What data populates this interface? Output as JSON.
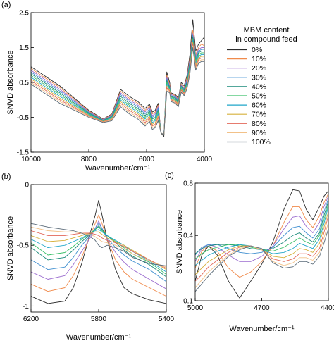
{
  "chart_data": [
    {
      "panel": "(a)",
      "type": "line",
      "xlabel": "Wavenumber/cm⁻¹",
      "ylabel": "SNVD absorbance",
      "xlim": [
        10000,
        4000
      ],
      "ylim": [
        -1.5,
        2.5
      ],
      "xticks": [
        "10000",
        "8000",
        "6000",
        "4000"
      ],
      "yticks": [
        "2.5",
        "1.5",
        "0.5",
        "-0.5",
        "-1.5"
      ],
      "legend_title": "MBM content\nin compound feed",
      "legend_position": "right",
      "x": [
        10000,
        9000,
        8000,
        7500,
        7200,
        6900,
        6600,
        6300,
        6050,
        5900,
        5800,
        5700,
        5600,
        5500,
        5400,
        5300,
        5200,
        5150,
        5000,
        4900,
        4800,
        4700,
        4600,
        4500,
        4400,
        4300,
        4200,
        4100,
        4000
      ],
      "series": [
        {
          "name": "0%",
          "values": [
            0.95,
            0.4,
            -0.3,
            -0.55,
            -0.4,
            0.3,
            0.1,
            -0.05,
            -0.25,
            -0.12,
            -0.35,
            -0.3,
            -0.1,
            -0.95,
            -1.05,
            0.8,
            0.5,
            0.2,
            0.15,
            0.05,
            0.5,
            0.4,
            0.7,
            1.3,
            2.3,
            1.4,
            1.6,
            1.7,
            1.8
          ]
        },
        {
          "name": "10%",
          "values": [
            0.9,
            0.35,
            -0.32,
            -0.56,
            -0.42,
            0.25,
            0.05,
            -0.1,
            -0.3,
            -0.18,
            -0.4,
            -0.35,
            -0.15,
            -0.95,
            -1.0,
            0.7,
            0.45,
            0.18,
            0.12,
            0.02,
            0.45,
            0.35,
            0.65,
            1.2,
            2.0,
            1.3,
            1.5,
            1.6,
            1.55
          ]
        },
        {
          "name": "20%",
          "values": [
            0.85,
            0.3,
            -0.34,
            -0.57,
            -0.44,
            0.2,
            0.0,
            -0.15,
            -0.35,
            -0.22,
            -0.45,
            -0.4,
            -0.2,
            -0.95,
            -1.0,
            0.65,
            0.4,
            0.15,
            0.1,
            0.0,
            0.42,
            0.32,
            0.6,
            1.15,
            1.9,
            1.25,
            1.45,
            1.5,
            1.5
          ]
        },
        {
          "name": "30%",
          "values": [
            0.8,
            0.25,
            -0.36,
            -0.58,
            -0.46,
            0.15,
            -0.05,
            -0.2,
            -0.4,
            -0.27,
            -0.5,
            -0.45,
            -0.25,
            -0.95,
            -1.0,
            0.6,
            0.38,
            0.12,
            0.08,
            -0.02,
            0.4,
            0.3,
            0.55,
            1.1,
            1.85,
            1.2,
            1.4,
            1.45,
            1.45
          ]
        },
        {
          "name": "40%",
          "values": [
            0.75,
            0.2,
            -0.38,
            -0.59,
            -0.48,
            0.1,
            -0.1,
            -0.25,
            -0.45,
            -0.32,
            -0.55,
            -0.5,
            -0.3,
            -0.95,
            -1.0,
            0.55,
            0.35,
            0.1,
            0.05,
            -0.05,
            0.38,
            0.28,
            0.5,
            1.05,
            1.8,
            1.15,
            1.35,
            1.4,
            1.4
          ]
        },
        {
          "name": "50%",
          "values": [
            0.7,
            0.15,
            -0.4,
            -0.6,
            -0.5,
            0.05,
            -0.15,
            -0.3,
            -0.5,
            -0.37,
            -0.6,
            -0.55,
            -0.35,
            -0.95,
            -1.0,
            0.5,
            0.32,
            0.08,
            0.02,
            -0.08,
            0.35,
            0.25,
            0.45,
            1.0,
            1.75,
            1.1,
            1.3,
            1.35,
            1.35
          ]
        },
        {
          "name": "60%",
          "values": [
            0.65,
            0.1,
            -0.42,
            -0.61,
            -0.52,
            0.0,
            -0.2,
            -0.35,
            -0.55,
            -0.42,
            -0.65,
            -0.6,
            -0.4,
            -0.95,
            -1.0,
            0.45,
            0.3,
            0.05,
            0.0,
            -0.1,
            0.32,
            0.22,
            0.42,
            0.95,
            1.7,
            1.05,
            1.25,
            1.3,
            1.3
          ]
        },
        {
          "name": "70%",
          "values": [
            0.6,
            0.05,
            -0.44,
            -0.62,
            -0.54,
            -0.05,
            -0.25,
            -0.4,
            -0.6,
            -0.47,
            -0.7,
            -0.65,
            -0.45,
            -0.95,
            -1.0,
            0.4,
            0.28,
            0.02,
            -0.02,
            -0.12,
            0.3,
            0.2,
            0.4,
            0.9,
            1.65,
            1.0,
            1.2,
            1.25,
            1.25
          ]
        },
        {
          "name": "80%",
          "values": [
            0.55,
            0.0,
            -0.46,
            -0.63,
            -0.56,
            -0.1,
            -0.3,
            -0.45,
            -0.65,
            -0.52,
            -0.75,
            -0.7,
            -0.5,
            -0.95,
            -1.0,
            0.35,
            0.25,
            0.0,
            -0.05,
            -0.15,
            0.28,
            0.18,
            0.38,
            0.85,
            1.6,
            0.95,
            1.15,
            1.2,
            1.2
          ]
        },
        {
          "name": "90%",
          "values": [
            0.5,
            -0.05,
            -0.48,
            -0.64,
            -0.58,
            -0.15,
            -0.35,
            -0.5,
            -0.7,
            -0.57,
            -0.8,
            -0.75,
            -0.55,
            -0.95,
            -1.0,
            0.3,
            0.22,
            -0.02,
            -0.08,
            -0.18,
            0.25,
            0.15,
            0.35,
            0.8,
            1.55,
            0.9,
            1.1,
            1.15,
            1.15
          ]
        },
        {
          "name": "100%",
          "values": [
            0.45,
            -0.1,
            -0.5,
            -0.65,
            -0.6,
            -0.2,
            -0.4,
            -0.55,
            -0.75,
            -0.62,
            -0.85,
            -0.8,
            -0.6,
            -0.95,
            -1.0,
            0.25,
            0.2,
            -0.05,
            -0.1,
            -0.2,
            0.22,
            0.12,
            0.32,
            0.75,
            1.5,
            0.85,
            1.05,
            1.1,
            1.1
          ]
        }
      ]
    },
    {
      "panel": "(b)",
      "type": "line",
      "xlabel": "Wavenumber/cm⁻¹",
      "ylabel": "SNVD absorbance",
      "xlim": [
        6200,
        5400
      ],
      "ylim": [
        -1.05,
        0
      ],
      "xticks": [
        "6200",
        "5800",
        "5400"
      ],
      "yticks": [
        "0",
        "-0.5",
        "-1"
      ],
      "x": [
        6200,
        6100,
        6000,
        5950,
        5900,
        5850,
        5820,
        5800,
        5780,
        5750,
        5700,
        5650,
        5600,
        5500,
        5400
      ],
      "series": [
        {
          "name": "0%",
          "values": [
            -0.92,
            -0.98,
            -0.96,
            -0.85,
            -0.65,
            -0.4,
            -0.25,
            -0.13,
            -0.25,
            -0.45,
            -0.7,
            -0.85,
            -0.9,
            -0.95,
            -0.98
          ]
        },
        {
          "name": "10%",
          "values": [
            -0.82,
            -0.88,
            -0.85,
            -0.75,
            -0.6,
            -0.42,
            -0.32,
            -0.25,
            -0.32,
            -0.45,
            -0.62,
            -0.72,
            -0.78,
            -0.85,
            -0.92
          ]
        },
        {
          "name": "20%",
          "values": [
            -0.72,
            -0.78,
            -0.75,
            -0.66,
            -0.55,
            -0.44,
            -0.36,
            -0.3,
            -0.36,
            -0.45,
            -0.56,
            -0.64,
            -0.7,
            -0.78,
            -0.86
          ]
        },
        {
          "name": "30%",
          "values": [
            -0.62,
            -0.7,
            -0.68,
            -0.6,
            -0.5,
            -0.42,
            -0.36,
            -0.32,
            -0.36,
            -0.44,
            -0.52,
            -0.58,
            -0.63,
            -0.7,
            -0.8
          ]
        },
        {
          "name": "40%",
          "values": [
            -0.52,
            -0.62,
            -0.6,
            -0.54,
            -0.47,
            -0.41,
            -0.37,
            -0.34,
            -0.37,
            -0.42,
            -0.48,
            -0.54,
            -0.59,
            -0.66,
            -0.76
          ]
        },
        {
          "name": "50%",
          "values": [
            -0.48,
            -0.58,
            -0.56,
            -0.51,
            -0.45,
            -0.4,
            -0.37,
            -0.35,
            -0.38,
            -0.42,
            -0.47,
            -0.52,
            -0.57,
            -0.64,
            -0.74
          ]
        },
        {
          "name": "60%",
          "values": [
            -0.45,
            -0.52,
            -0.5,
            -0.47,
            -0.44,
            -0.4,
            -0.38,
            -0.37,
            -0.39,
            -0.42,
            -0.46,
            -0.5,
            -0.55,
            -0.63,
            -0.72
          ]
        },
        {
          "name": "70%",
          "values": [
            -0.42,
            -0.47,
            -0.46,
            -0.44,
            -0.42,
            -0.4,
            -0.39,
            -0.39,
            -0.41,
            -0.44,
            -0.47,
            -0.5,
            -0.54,
            -0.62,
            -0.7
          ]
        },
        {
          "name": "80%",
          "values": [
            -0.38,
            -0.42,
            -0.42,
            -0.41,
            -0.4,
            -0.4,
            -0.41,
            -0.42,
            -0.44,
            -0.46,
            -0.48,
            -0.51,
            -0.55,
            -0.62,
            -0.69
          ]
        },
        {
          "name": "90%",
          "values": [
            -0.35,
            -0.38,
            -0.39,
            -0.39,
            -0.4,
            -0.41,
            -0.43,
            -0.45,
            -0.47,
            -0.48,
            -0.5,
            -0.53,
            -0.57,
            -0.63,
            -0.68
          ]
        },
        {
          "name": "100%",
          "values": [
            -0.32,
            -0.35,
            -0.37,
            -0.38,
            -0.4,
            -0.43,
            -0.46,
            -0.5,
            -0.52,
            -0.5,
            -0.52,
            -0.55,
            -0.6,
            -0.65,
            -0.67
          ]
        }
      ]
    },
    {
      "panel": "(c)",
      "type": "line",
      "xlabel": "Wavenumber/cm⁻¹",
      "ylabel": "SNVD absorbance",
      "xlim": [
        5000,
        4400
      ],
      "ylim": [
        -0.1,
        0.8
      ],
      "xticks": [
        "5000",
        "4700",
        "4400"
      ],
      "yticks": [
        "0.8",
        "0.4",
        "-0.1"
      ],
      "x": [
        5000,
        4970,
        4940,
        4900,
        4850,
        4800,
        4750,
        4700,
        4650,
        4600,
        4560,
        4530,
        4500,
        4470,
        4440,
        4420,
        4400
      ],
      "series": [
        {
          "name": "0%",
          "values": [
            0.05,
            0.25,
            0.32,
            0.25,
            0.05,
            -0.08,
            0.05,
            0.18,
            0.35,
            0.6,
            0.75,
            0.74,
            0.6,
            0.52,
            0.62,
            0.7,
            0.74
          ]
        },
        {
          "name": "10%",
          "values": [
            0.15,
            0.28,
            0.32,
            0.28,
            0.15,
            0.08,
            0.12,
            0.2,
            0.32,
            0.5,
            0.62,
            0.62,
            0.52,
            0.46,
            0.55,
            0.65,
            0.72
          ]
        },
        {
          "name": "20%",
          "values": [
            0.2,
            0.3,
            0.33,
            0.31,
            0.25,
            0.2,
            0.2,
            0.24,
            0.32,
            0.45,
            0.54,
            0.55,
            0.47,
            0.42,
            0.5,
            0.62,
            0.7
          ]
        },
        {
          "name": "30%",
          "values": [
            0.25,
            0.31,
            0.33,
            0.33,
            0.3,
            0.27,
            0.26,
            0.27,
            0.31,
            0.4,
            0.46,
            0.47,
            0.42,
            0.38,
            0.45,
            0.58,
            0.68
          ]
        },
        {
          "name": "40%",
          "values": [
            0.26,
            0.3,
            0.32,
            0.33,
            0.33,
            0.32,
            0.3,
            0.29,
            0.3,
            0.35,
            0.4,
            0.42,
            0.38,
            0.35,
            0.42,
            0.55,
            0.66
          ]
        },
        {
          "name": "50%",
          "values": [
            0.22,
            0.26,
            0.29,
            0.31,
            0.33,
            0.33,
            0.31,
            0.29,
            0.28,
            0.31,
            0.35,
            0.38,
            0.35,
            0.33,
            0.4,
            0.52,
            0.64
          ]
        },
        {
          "name": "60%",
          "values": [
            0.17,
            0.21,
            0.25,
            0.28,
            0.31,
            0.33,
            0.32,
            0.29,
            0.26,
            0.27,
            0.3,
            0.34,
            0.32,
            0.3,
            0.37,
            0.49,
            0.62
          ]
        },
        {
          "name": "70%",
          "values": [
            0.1,
            0.15,
            0.2,
            0.24,
            0.29,
            0.32,
            0.32,
            0.29,
            0.24,
            0.23,
            0.26,
            0.3,
            0.29,
            0.27,
            0.34,
            0.46,
            0.58
          ]
        },
        {
          "name": "80%",
          "values": [
            0.05,
            0.1,
            0.16,
            0.21,
            0.27,
            0.31,
            0.32,
            0.29,
            0.22,
            0.2,
            0.22,
            0.26,
            0.26,
            0.24,
            0.3,
            0.42,
            0.55
          ]
        },
        {
          "name": "90%",
          "values": [
            0.0,
            0.06,
            0.12,
            0.18,
            0.25,
            0.3,
            0.32,
            0.29,
            0.2,
            0.17,
            0.19,
            0.23,
            0.23,
            0.21,
            0.27,
            0.38,
            0.5
          ]
        },
        {
          "name": "100%",
          "values": [
            -0.03,
            0.03,
            0.09,
            0.16,
            0.24,
            0.29,
            0.32,
            0.3,
            0.19,
            0.15,
            0.16,
            0.2,
            0.2,
            0.18,
            0.24,
            0.34,
            0.45
          ]
        }
      ]
    }
  ],
  "colors": [
    "#2b2b2b",
    "#f08a4b",
    "#9b6ccf",
    "#3f8fd0",
    "#1a8a7a",
    "#3cc06a",
    "#1fa6c9",
    "#d6b03c",
    "#e2685a",
    "#f2c188",
    "#5a6a78"
  ]
}
